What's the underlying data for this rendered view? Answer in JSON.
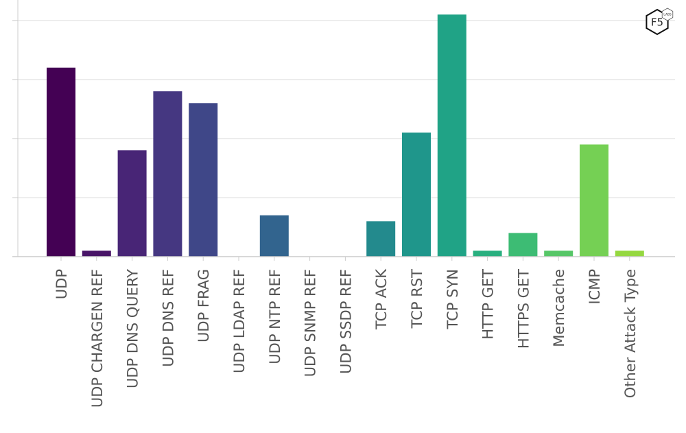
{
  "brand": {
    "logo_text": "F5",
    "logo_subtext": "LABS"
  },
  "chart_data": {
    "type": "bar",
    "title": "",
    "xlabel": "",
    "ylabel": "",
    "ylim": [
      0,
      4.3
    ],
    "yticks": [
      0,
      1,
      2,
      3,
      4
    ],
    "ytick_labels_visible": false,
    "grid": "horizontal",
    "legend": "none",
    "categories": [
      "UDP",
      "UDP CHARGEN REF",
      "UDP DNS QUERY",
      "UDP DNS REF",
      "UDP FRAG",
      "UDP LDAP REF",
      "UDP NTP REF",
      "UDP SNMP REF",
      "UDP SSDP REF",
      "TCP ACK",
      "TCP RST",
      "TCP SYN",
      "HTTP GET",
      "HTTPS GET",
      "Memcache",
      "ICMP",
      "Other Attack Type"
    ],
    "values": [
      3.2,
      0.1,
      1.8,
      2.8,
      2.6,
      0,
      0.7,
      0,
      0,
      0.6,
      2.1,
      4.1,
      0.1,
      0.4,
      0.1,
      1.9,
      0.1
    ],
    "colors": [
      "#440154",
      "#481467",
      "#482576",
      "#453781",
      "#3f4788",
      "#39558c",
      "#32648e",
      "#2d718e",
      "#287d8e",
      "#238a8d",
      "#1f968b",
      "#20a386",
      "#29af7f",
      "#3dbc74",
      "#56c667",
      "#75d054",
      "#95d840",
      "#bade28",
      "#dde318",
      "#fde725"
    ]
  }
}
